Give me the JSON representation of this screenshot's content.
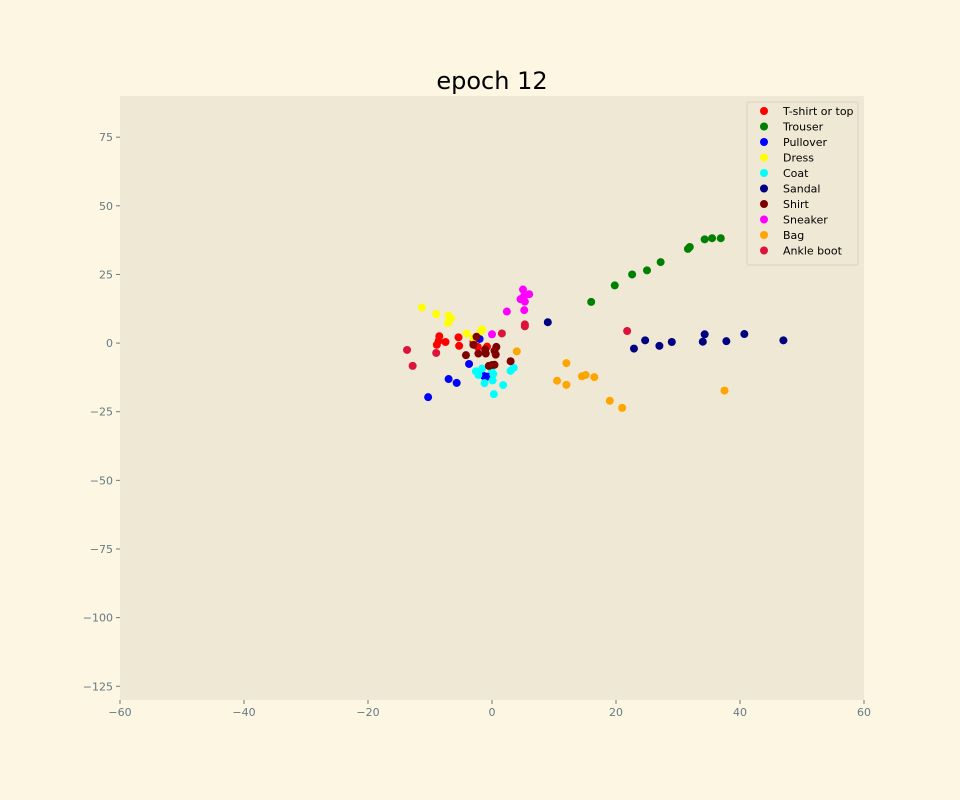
{
  "colors": {
    "figure_bg": "#fdf6e3",
    "axes_bg": "#eee8d5",
    "tick_color": "#657b83",
    "title_color": "#000000"
  },
  "chart_data": {
    "type": "scatter",
    "title": "epoch 12",
    "xlabel": "",
    "ylabel": "",
    "xlim": [
      -60,
      60
    ],
    "ylim": [
      -130,
      90
    ],
    "x_ticks": [
      -60,
      -40,
      -20,
      0,
      20,
      40,
      60
    ],
    "y_ticks": [
      75,
      50,
      25,
      0,
      -25,
      -50,
      -75,
      -100,
      -125
    ],
    "grid": false,
    "legend_position": "top-right",
    "series": [
      {
        "name": "T-shirt or top",
        "color": "#ff0000",
        "points": [
          [
            -8.5,
            2.5
          ],
          [
            -8.6,
            0.8
          ],
          [
            -8.9,
            -0.6
          ],
          [
            -7.5,
            0.4
          ],
          [
            -5.4,
            2.1
          ],
          [
            -5.3,
            -1.0
          ],
          [
            -3.0,
            0.5
          ],
          [
            -2.3,
            -1.4
          ],
          [
            -0.8,
            -1.3
          ]
        ]
      },
      {
        "name": "Trouser",
        "color": "#008000",
        "points": [
          [
            16.0,
            15.0
          ],
          [
            19.8,
            21.0
          ],
          [
            22.6,
            25.0
          ],
          [
            25.0,
            26.5
          ],
          [
            27.2,
            29.5
          ],
          [
            31.6,
            34.3
          ],
          [
            31.9,
            35.0
          ],
          [
            34.3,
            37.8
          ],
          [
            35.5,
            38.2
          ],
          [
            36.9,
            38.2
          ]
        ]
      },
      {
        "name": "Pullover",
        "color": "#0000ff",
        "points": [
          [
            -10.3,
            -19.7
          ],
          [
            -7.0,
            -13.1
          ],
          [
            -5.7,
            -14.5
          ],
          [
            -3.7,
            -7.6
          ],
          [
            -2.0,
            1.5
          ],
          [
            -1.3,
            -12.0
          ],
          [
            -0.7,
            -12.2
          ]
        ]
      },
      {
        "name": "Dress",
        "color": "#ffff00",
        "points": [
          [
            -11.3,
            13.0
          ],
          [
            -9.0,
            10.6
          ],
          [
            -7.0,
            10.0
          ],
          [
            -6.6,
            9.0
          ],
          [
            -7.1,
            7.4
          ],
          [
            -4.1,
            3.5
          ],
          [
            -1.8,
            4.3
          ],
          [
            -1.6,
            5.0
          ],
          [
            -3.0,
            1.8
          ]
        ]
      },
      {
        "name": "Coat",
        "color": "#00ffff",
        "points": [
          [
            -2.6,
            -10.3
          ],
          [
            -2.2,
            -11.6
          ],
          [
            -1.6,
            -9.3
          ],
          [
            -1.2,
            -14.6
          ],
          [
            -0.1,
            -9.5
          ],
          [
            0.2,
            -11.3
          ],
          [
            0.1,
            -13.6
          ],
          [
            0.3,
            -18.6
          ],
          [
            1.8,
            -15.3
          ],
          [
            3.0,
            -10.1
          ],
          [
            3.5,
            -9.0
          ]
        ]
      },
      {
        "name": "Sandal",
        "color": "#000080",
        "points": [
          [
            9.0,
            7.6
          ],
          [
            22.9,
            -2.0
          ],
          [
            24.7,
            1.0
          ],
          [
            27.0,
            -1.0
          ],
          [
            29.0,
            0.4
          ],
          [
            34.0,
            0.5
          ],
          [
            34.3,
            3.2
          ],
          [
            37.8,
            0.7
          ],
          [
            40.7,
            3.3
          ],
          [
            47.0,
            1.0
          ]
        ]
      },
      {
        "name": "Shirt",
        "color": "#800000",
        "points": [
          [
            -4.2,
            -4.4
          ],
          [
            -3.0,
            -0.6
          ],
          [
            -2.5,
            2.3
          ],
          [
            -2.2,
            -3.8
          ],
          [
            -1.1,
            -2.3
          ],
          [
            -1.0,
            -3.8
          ],
          [
            -0.5,
            -8.3
          ],
          [
            0.0,
            -8.0
          ],
          [
            0.4,
            -7.9
          ],
          [
            0.4,
            -2.8
          ],
          [
            0.6,
            -4.2
          ],
          [
            0.7,
            -1.4
          ],
          [
            3.0,
            -6.6
          ]
        ]
      },
      {
        "name": "Sneaker",
        "color": "#ff00ff",
        "points": [
          [
            0.0,
            3.2
          ],
          [
            2.4,
            11.5
          ],
          [
            4.6,
            16.0
          ],
          [
            5.0,
            19.5
          ],
          [
            5.2,
            17.2
          ],
          [
            5.3,
            15.1
          ],
          [
            5.2,
            12.0
          ],
          [
            6.0,
            17.8
          ]
        ]
      },
      {
        "name": "Bag",
        "color": "#ffa500",
        "points": [
          [
            4.0,
            -3.0
          ],
          [
            10.5,
            -13.7
          ],
          [
            12.0,
            -7.3
          ],
          [
            12.0,
            -15.2
          ],
          [
            14.5,
            -12.1
          ],
          [
            15.1,
            -11.6
          ],
          [
            16.5,
            -12.4
          ],
          [
            19.0,
            -21.0
          ],
          [
            21.0,
            -23.6
          ],
          [
            37.5,
            -17.3
          ]
        ]
      },
      {
        "name": "Ankle boot",
        "color": "#dc143c",
        "points": [
          [
            -13.7,
            -2.5
          ],
          [
            -12.8,
            -8.3
          ],
          [
            -9.0,
            -3.6
          ],
          [
            1.6,
            3.5
          ],
          [
            5.3,
            6.1
          ],
          [
            5.3,
            6.8
          ],
          [
            21.8,
            4.4
          ]
        ]
      }
    ]
  }
}
